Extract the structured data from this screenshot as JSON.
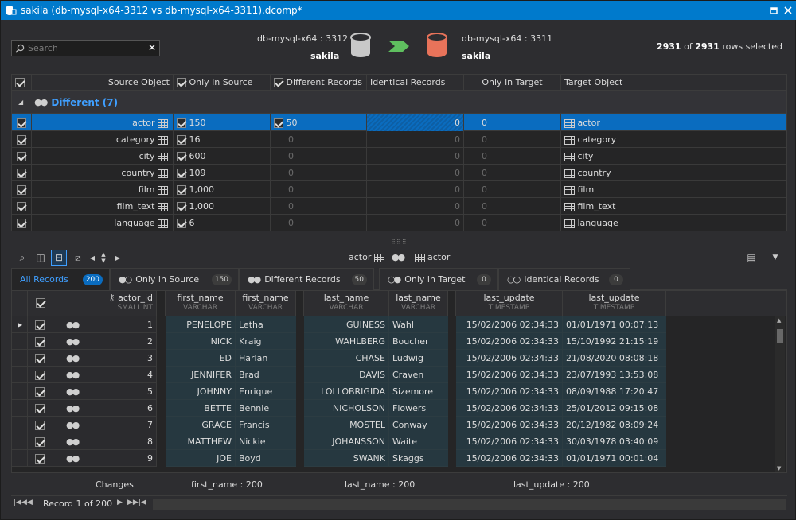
{
  "window": {
    "title": "sakila (db-mysql-x64-3312 vs db-mysql-x64-3311).dcomp*",
    "restore_icon": "restore-icon",
    "close_icon": "close-icon"
  },
  "search": {
    "placeholder": "Search",
    "value": ""
  },
  "source": {
    "server": "db-mysql-x64 : 3312",
    "database": "sakila",
    "color": "#c8c8c8"
  },
  "target": {
    "server": "db-mysql-x64 : 3311",
    "database": "sakila",
    "color": "#e8735a"
  },
  "arrow_color": "#5fbf5f",
  "selection": {
    "selected": "2931",
    "of": "of",
    "total": "2931",
    "suffix": "rows selected"
  },
  "object_grid": {
    "columns": [
      "Source Object",
      "Only in Source",
      "Different Records",
      "Identical Records",
      "Only in Target",
      "Target Object"
    ],
    "group": {
      "label": "Different (7)"
    },
    "rows": [
      {
        "source": "actor",
        "only_source": "150",
        "different": "50",
        "identical": "0",
        "only_target": "0",
        "target": "actor",
        "selected": true,
        "diff_checked": true
      },
      {
        "source": "category",
        "only_source": "16",
        "different": "0",
        "identical": "0",
        "only_target": "0",
        "target": "category",
        "selected": false,
        "diff_checked": false
      },
      {
        "source": "city",
        "only_source": "600",
        "different": "0",
        "identical": "0",
        "only_target": "0",
        "target": "city",
        "selected": false,
        "diff_checked": false
      },
      {
        "source": "country",
        "only_source": "109",
        "different": "0",
        "identical": "0",
        "only_target": "0",
        "target": "country",
        "selected": false,
        "diff_checked": false
      },
      {
        "source": "film",
        "only_source": "1,000",
        "different": "0",
        "identical": "0",
        "only_target": "0",
        "target": "film",
        "selected": false,
        "diff_checked": false
      },
      {
        "source": "film_text",
        "only_source": "1,000",
        "different": "0",
        "identical": "0",
        "only_target": "0",
        "target": "film_text",
        "selected": false,
        "diff_checked": false
      },
      {
        "source": "language",
        "only_source": "6",
        "different": "0",
        "identical": "0",
        "only_target": "0",
        "target": "language",
        "selected": false,
        "diff_checked": false
      }
    ]
  },
  "detail_toolbar": {
    "source_table": "actor",
    "target_table": "actor"
  },
  "tabs": [
    {
      "label": "All Records",
      "count": "200",
      "active": true
    },
    {
      "label": "Only in Source",
      "count": "150",
      "active": false
    },
    {
      "label": "Different Records",
      "count": "50",
      "active": false
    },
    {
      "label": "Only in Target",
      "count": "0",
      "active": false
    },
    {
      "label": "Identical Records",
      "count": "0",
      "active": false
    }
  ],
  "record_grid": {
    "columns": [
      {
        "name": "actor_id",
        "type": "SMALLINT"
      },
      {
        "name": "first_name",
        "type": "VARCHAR"
      },
      {
        "name": "first_name",
        "type": "VARCHAR"
      },
      {
        "name": "last_name",
        "type": "VARCHAR"
      },
      {
        "name": "last_name",
        "type": "VARCHAR"
      },
      {
        "name": "last_update",
        "type": "TIMESTAMP"
      },
      {
        "name": "last_update",
        "type": "TIMESTAMP"
      }
    ],
    "rows": [
      {
        "id": "1",
        "fn_s": "PENELOPE",
        "fn_t": "Letha",
        "ln_s": "GUINESS",
        "ln_t": "Wahl",
        "lu_s": "15/02/2006 02:34:33",
        "lu_t": "01/01/1971 00:07:13"
      },
      {
        "id": "2",
        "fn_s": "NICK",
        "fn_t": "Kraig",
        "ln_s": "WAHLBERG",
        "ln_t": "Boucher",
        "lu_s": "15/02/2006 02:34:33",
        "lu_t": "15/10/1992 21:15:19"
      },
      {
        "id": "3",
        "fn_s": "ED",
        "fn_t": "Harlan",
        "ln_s": "CHASE",
        "ln_t": "Ludwig",
        "lu_s": "15/02/2006 02:34:33",
        "lu_t": "21/08/2020 08:08:18"
      },
      {
        "id": "4",
        "fn_s": "JENNIFER",
        "fn_t": "Brad",
        "ln_s": "DAVIS",
        "ln_t": "Craven",
        "lu_s": "15/02/2006 02:34:33",
        "lu_t": "23/07/1993 13:53:08"
      },
      {
        "id": "5",
        "fn_s": "JOHNNY",
        "fn_t": "Enrique",
        "ln_s": "LOLLOBRIGIDA",
        "ln_t": "Sizemore",
        "lu_s": "15/02/2006 02:34:33",
        "lu_t": "08/09/1988 17:20:47"
      },
      {
        "id": "6",
        "fn_s": "BETTE",
        "fn_t": "Bennie",
        "ln_s": "NICHOLSON",
        "ln_t": "Flowers",
        "lu_s": "15/02/2006 02:34:33",
        "lu_t": "25/01/2012 09:15:08"
      },
      {
        "id": "7",
        "fn_s": "GRACE",
        "fn_t": "Francis",
        "ln_s": "MOSTEL",
        "ln_t": "Conway",
        "lu_s": "15/02/2006 02:34:33",
        "lu_t": "20/12/1982 08:09:24"
      },
      {
        "id": "8",
        "fn_s": "MATTHEW",
        "fn_t": "Nickie",
        "ln_s": "JOHANSSON",
        "ln_t": "Waite",
        "lu_s": "15/02/2006 02:34:33",
        "lu_t": "30/03/1978 03:40:09"
      },
      {
        "id": "9",
        "fn_s": "JOE",
        "fn_t": "Boyd",
        "ln_s": "SWANK",
        "ln_t": "Skaggs",
        "lu_s": "15/02/2006 02:34:33",
        "lu_t": "01/01/1971 00:01:04"
      }
    ]
  },
  "changes": {
    "label": "Changes",
    "first_name": "first_name : 200",
    "last_name": "last_name : 200",
    "last_update": "last_update : 200"
  },
  "navigator": {
    "record_text": "Record 1 of 200"
  }
}
